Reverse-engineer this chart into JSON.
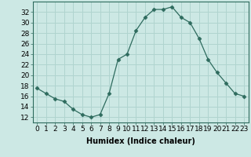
{
  "x": [
    0,
    1,
    2,
    3,
    4,
    5,
    6,
    7,
    8,
    9,
    10,
    11,
    12,
    13,
    14,
    15,
    16,
    17,
    18,
    19,
    20,
    21,
    22,
    23
  ],
  "y": [
    17.5,
    16.5,
    15.5,
    15,
    13.5,
    12.5,
    12,
    12.5,
    16.5,
    23,
    24,
    28.5,
    31,
    32.5,
    32.5,
    33,
    31,
    30,
    27,
    23,
    20.5,
    18.5,
    16.5,
    16
  ],
  "line_color": "#2e6b5e",
  "marker": "D",
  "marker_size": 2.5,
  "marker_color": "#2e6b5e",
  "bg_color": "#cce8e4",
  "grid_color": "#b0d4cf",
  "xlabel": "Humidex (Indice chaleur)",
  "xlabel_fontsize": 7,
  "ylabel_ticks": [
    12,
    14,
    16,
    18,
    20,
    22,
    24,
    26,
    28,
    30,
    32
  ],
  "ylim": [
    11,
    34
  ],
  "xlim": [
    -0.5,
    23.5
  ],
  "tick_fontsize": 6.5
}
